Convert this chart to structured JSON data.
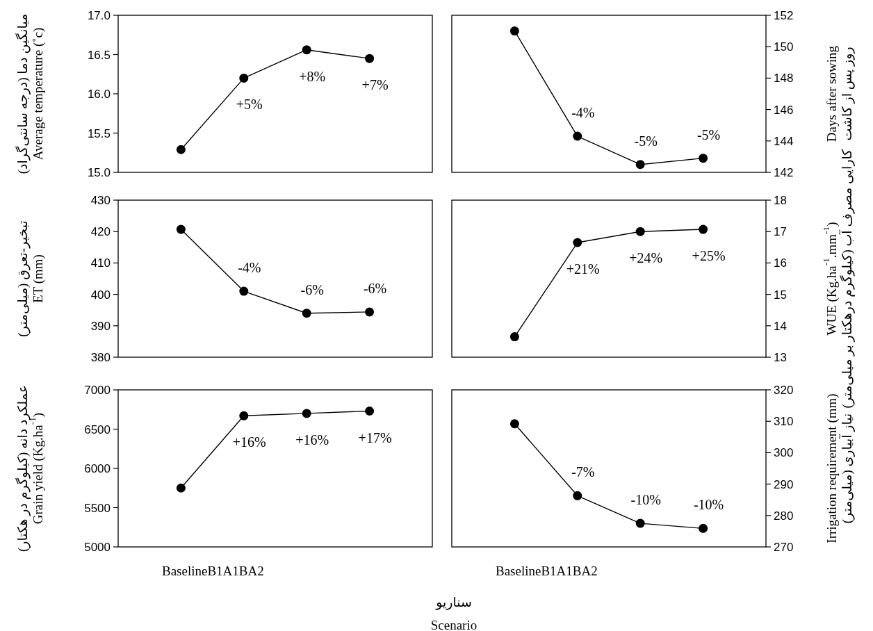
{
  "chart_data": [
    {
      "type": "line",
      "ylabel": "میانگین دما (درجه سانتی‌گراد)\nAverage temperature (˚c)",
      "categories": [
        null,
        null,
        null,
        null
      ],
      "ylim": [
        15,
        17
      ],
      "yticks": [
        {
          "value": 15,
          "label": "15.0"
        },
        {
          "value": 15.5,
          "label": "15.5"
        },
        {
          "value": 16,
          "label": "16.0"
        },
        {
          "value": 16.5,
          "label": "16.5"
        },
        {
          "value": 17,
          "label": "17.0"
        }
      ],
      "marker": "circle",
      "line_style": "solid",
      "series": [
        {
          "color": "#000000",
          "values": [
            15.29,
            16.2,
            16.56,
            16.45
          ]
        }
      ],
      "annotations": [
        {
          "text": "+5%",
          "y": 16.2
        },
        {
          "text": "+8%",
          "y": 16.56
        },
        {
          "text": "+7%",
          "y": 16.45
        }
      ]
    },
    {
      "type": "line",
      "ylabel": "Days after sowing\nروز پس از کاشت",
      "categories": [
        null,
        null,
        null,
        null
      ],
      "ylim": [
        142,
        152
      ],
      "yticks": [
        142,
        144,
        146,
        148,
        150,
        152
      ],
      "marker": "circle",
      "line_style": "solid",
      "series": [
        {
          "color": "#000000",
          "values": [
            151,
            144.3,
            142.5,
            142.9
          ]
        }
      ],
      "annotations": [
        {
          "text": "-4%",
          "y": 144.3
        },
        {
          "text": "-5%",
          "y": 142.5
        },
        {
          "text": "-5%",
          "y": 142.9
        }
      ]
    },
    {
      "type": "line",
      "ylabel": "تبخیر-تعرق (میلی‌متر)\nET (mm)",
      "categories": [
        null,
        null,
        null,
        null
      ],
      "ylim": [
        380,
        430
      ],
      "yticks": [
        380,
        390,
        400,
        410,
        420,
        430
      ],
      "marker": "circle",
      "line_style": "solid",
      "series": [
        {
          "color": "#000000",
          "values": [
            420.7,
            401,
            394,
            394.4
          ]
        }
      ],
      "annotations": [
        {
          "text": "-4%",
          "y": 401
        },
        {
          "text": "-6%",
          "y": 394
        },
        {
          "text": "-6%",
          "y": 394.4
        }
      ]
    },
    {
      "type": "line",
      "ylabel": "WUE (Kg.ha$^{-1}$.mm$^{-1}$)\nکارایی مصرف آب (کیلوگرم درهکتار بر میلی‌متر)",
      "categories": [
        null,
        null,
        null,
        null
      ],
      "ylim": [
        13,
        18
      ],
      "yticks": [
        13,
        14,
        15,
        16,
        17,
        18
      ],
      "marker": "circle",
      "line_style": "solid",
      "series": [
        {
          "color": "#000000",
          "values": [
            13.65,
            16.65,
            17.0,
            17.07
          ]
        }
      ],
      "annotations": [
        {
          "text": "+21%",
          "y": 16.65
        },
        {
          "text": "+24%",
          "y": 17.0
        },
        {
          "text": "+25%",
          "y": 17.07
        }
      ]
    },
    {
      "type": "line",
      "ylabel": "عملکرد دانه (کیلوگرم در هکتار)\nGrain yield (Kg.ha$^{-1}$)",
      "xlabel": "BaselineB1A1BA2",
      "categories": [
        null,
        null,
        null,
        null
      ],
      "ylim": [
        5000,
        7000
      ],
      "yticks": [
        5000,
        5500,
        6000,
        6500,
        7000
      ],
      "marker": "circle",
      "line_style": "solid",
      "series": [
        {
          "color": "#000000",
          "values": [
            5750,
            6670,
            6700,
            6730
          ]
        }
      ],
      "annotations": [
        {
          "text": "+16%",
          "y": 6670
        },
        {
          "text": "+16%",
          "y": 6700
        },
        {
          "text": "+17%",
          "y": 6730
        },
        "سناریو",
        "Scenario"
      ]
    },
    {
      "type": "line",
      "ylabel": "Irrigation requirement (mm)\nنیاز آبیاری (میلی‌متر)",
      "xlabel": "BaselineB1A1BA2",
      "categories": [
        null,
        null,
        null,
        null
      ],
      "ylim": [
        270,
        320
      ],
      "yticks": [
        270,
        280,
        290,
        300,
        310,
        320
      ],
      "marker": "circle",
      "line_style": "solid",
      "series": [
        {
          "color": "#000000",
          "values": [
            309.2,
            286.3,
            277.5,
            275.9
          ]
        }
      ],
      "annotations": [
        {
          "text": "-7%",
          "y": 286.3
        },
        {
          "text": "-10%",
          "y": 277.5
        },
        {
          "text": "-10%",
          "y": 275.9
        }
      ]
    }
  ]
}
